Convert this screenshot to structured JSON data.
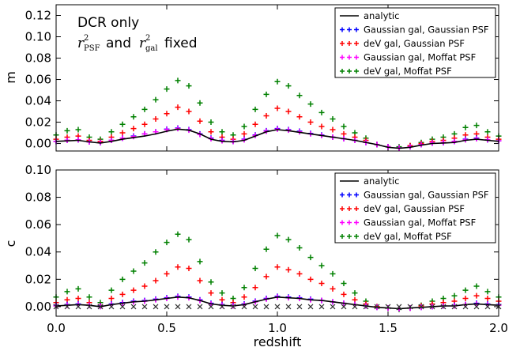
{
  "colors": {
    "analytic": "#000000",
    "gaussian_gaussian": "#0000ff",
    "dev_gaussian": "#ff0000",
    "gaussian_moffat": "#ff00ff",
    "dev_moffat": "#008000"
  },
  "chart_data": [
    {
      "type": "scatter",
      "id": "m",
      "ylabel": "m",
      "xlabel": "",
      "xlim": [
        0.0,
        2.0
      ],
      "ylim": [
        -0.007,
        0.13
      ],
      "yticks": [
        "0.00",
        "0.02",
        "0.04",
        "0.06",
        "0.08",
        "0.10",
        "0.12"
      ],
      "yticks_values": [
        0.0,
        0.02,
        0.04,
        0.06,
        0.08,
        0.1,
        0.12
      ],
      "xticks_values": [
        0.0,
        0.5,
        1.0,
        1.5,
        2.0
      ],
      "legend_position": "top-right",
      "legend": [
        "analytic",
        "Gaussian gal, Gaussian PSF",
        "deV gal, Gaussian PSF",
        "Gaussian gal, Moffat PSF",
        "deV gal, Moffat PSF"
      ],
      "annotation": {
        "line1": "DCR only",
        "and_fixed": "and",
        "fixed": "fixed",
        "r": "r",
        "sup": "2",
        "psf": "PSF",
        "gal": "gal"
      },
      "x": [
        0.0,
        0.05,
        0.1,
        0.15,
        0.2,
        0.25,
        0.3,
        0.35,
        0.4,
        0.45,
        0.5,
        0.55,
        0.6,
        0.65,
        0.7,
        0.75,
        0.8,
        0.85,
        0.9,
        0.95,
        1.0,
        1.05,
        1.1,
        1.15,
        1.2,
        1.25,
        1.3,
        1.35,
        1.4,
        1.45,
        1.5,
        1.55,
        1.6,
        1.65,
        1.7,
        1.75,
        1.8,
        1.85,
        1.9,
        1.95,
        2.0
      ],
      "series": [
        {
          "name": "analytic",
          "marker": "line",
          "color_key": "analytic",
          "values": [
            0.002,
            0.0025,
            0.003,
            0.0015,
            0.0005,
            0.002,
            0.004,
            0.0055,
            0.007,
            0.009,
            0.0115,
            0.0135,
            0.0125,
            0.009,
            0.004,
            0.002,
            0.0015,
            0.003,
            0.007,
            0.011,
            0.013,
            0.012,
            0.0105,
            0.009,
            0.0075,
            0.006,
            0.0045,
            0.003,
            0.001,
            -0.001,
            -0.0035,
            -0.0045,
            -0.0035,
            -0.0015,
            0.0,
            0.0005,
            0.001,
            0.003,
            0.004,
            0.003,
            0.002
          ]
        },
        {
          "name": "Gaussian gal, Gaussian PSF",
          "marker": "plus",
          "color_key": "gaussian_gaussian",
          "values": [
            0.002,
            0.003,
            0.0035,
            0.0015,
            0.001,
            0.003,
            0.005,
            0.007,
            0.009,
            0.011,
            0.0135,
            0.0145,
            0.013,
            0.009,
            0.005,
            0.003,
            0.002,
            0.004,
            0.008,
            0.012,
            0.014,
            0.013,
            0.0115,
            0.0095,
            0.008,
            0.006,
            0.0045,
            0.003,
            0.001,
            -0.001,
            -0.003,
            -0.004,
            -0.003,
            -0.001,
            0.0005,
            0.001,
            0.002,
            0.004,
            0.005,
            0.0035,
            0.0025
          ]
        },
        {
          "name": "deV gal, Gaussian PSF",
          "marker": "plus",
          "color_key": "dev_gaussian",
          "values": [
            0.004,
            0.006,
            0.007,
            0.003,
            0.002,
            0.006,
            0.01,
            0.014,
            0.018,
            0.023,
            0.028,
            0.034,
            0.03,
            0.021,
            0.011,
            0.006,
            0.004,
            0.009,
            0.018,
            0.026,
            0.033,
            0.03,
            0.025,
            0.02,
            0.016,
            0.013,
            0.009,
            0.006,
            0.003,
            -0.001,
            -0.003,
            -0.004,
            -0.002,
            0.0,
            0.002,
            0.003,
            0.005,
            0.008,
            0.009,
            0.006,
            0.004
          ]
        },
        {
          "name": "Gaussian gal, Moffat PSF",
          "marker": "plus",
          "color_key": "gaussian_moffat",
          "values": [
            0.002,
            0.003,
            0.0035,
            0.0015,
            0.001,
            0.003,
            0.005,
            0.0065,
            0.009,
            0.011,
            0.013,
            0.014,
            0.0125,
            0.0085,
            0.0045,
            0.0025,
            0.002,
            0.0035,
            0.0075,
            0.0115,
            0.0135,
            0.0125,
            0.011,
            0.009,
            0.0075,
            0.006,
            0.0045,
            0.003,
            0.001,
            -0.001,
            -0.003,
            -0.004,
            -0.003,
            -0.001,
            0.0005,
            0.001,
            0.002,
            0.0035,
            0.0045,
            0.0035,
            0.0025
          ]
        },
        {
          "name": "deV gal, Moffat PSF",
          "marker": "plus",
          "color_key": "dev_moffat",
          "values": [
            0.008,
            0.012,
            0.013,
            0.006,
            0.004,
            0.011,
            0.018,
            0.025,
            0.032,
            0.041,
            0.051,
            0.059,
            0.054,
            0.038,
            0.02,
            0.011,
            0.008,
            0.016,
            0.032,
            0.046,
            0.058,
            0.054,
            0.045,
            0.037,
            0.029,
            0.023,
            0.016,
            0.01,
            0.005,
            -0.001,
            -0.003,
            -0.003,
            -0.002,
            0.001,
            0.004,
            0.006,
            0.009,
            0.015,
            0.017,
            0.011,
            0.007
          ]
        }
      ]
    },
    {
      "type": "scatter",
      "id": "c",
      "ylabel": "c",
      "xlabel": "redshift",
      "xlim": [
        0.0,
        2.0
      ],
      "ylim": [
        -0.007,
        0.1
      ],
      "yticks": [
        "0.00",
        "0.02",
        "0.04",
        "0.06",
        "0.08",
        "0.10"
      ],
      "yticks_values": [
        0.0,
        0.02,
        0.04,
        0.06,
        0.08,
        0.1
      ],
      "xticks": [
        "0.0",
        "0.5",
        "1.0",
        "1.5",
        "2.0"
      ],
      "xticks_values": [
        0.0,
        0.5,
        1.0,
        1.5,
        2.0
      ],
      "legend_position": "top-right",
      "legend": [
        "analytic",
        "Gaussian gal, Gaussian PSF",
        "deV gal, Gaussian PSF",
        "Gaussian gal, Moffat PSF",
        "deV gal, Moffat PSF"
      ],
      "x": [
        0.0,
        0.05,
        0.1,
        0.15,
        0.2,
        0.25,
        0.3,
        0.35,
        0.4,
        0.45,
        0.5,
        0.55,
        0.6,
        0.65,
        0.7,
        0.75,
        0.8,
        0.85,
        0.9,
        0.95,
        1.0,
        1.05,
        1.1,
        1.15,
        1.2,
        1.25,
        1.3,
        1.35,
        1.4,
        1.45,
        1.5,
        1.55,
        1.6,
        1.65,
        1.7,
        1.75,
        1.8,
        1.85,
        1.9,
        1.95,
        2.0
      ],
      "series": [
        {
          "name": "analytic",
          "marker": "line",
          "color_key": "analytic",
          "values": [
            0.0005,
            0.001,
            0.0015,
            0.001,
            0.0,
            0.0015,
            0.0025,
            0.0035,
            0.004,
            0.005,
            0.006,
            0.007,
            0.0065,
            0.0045,
            0.002,
            0.001,
            0.0005,
            0.0015,
            0.0035,
            0.0055,
            0.007,
            0.0065,
            0.006,
            0.005,
            0.0045,
            0.0035,
            0.0025,
            0.0015,
            0.0005,
            -0.0005,
            -0.001,
            -0.0015,
            -0.001,
            -0.0005,
            0.0,
            0.0005,
            0.0005,
            0.0015,
            0.002,
            0.0015,
            0.001
          ]
        },
        {
          "name": "Gaussian gal, Gaussian PSF",
          "marker": "plus",
          "color_key": "gaussian_gaussian",
          "values": [
            0.001,
            0.0015,
            0.002,
            0.001,
            0.0005,
            0.002,
            0.003,
            0.004,
            0.0045,
            0.0055,
            0.0065,
            0.0075,
            0.007,
            0.005,
            0.0025,
            0.0015,
            0.001,
            0.002,
            0.004,
            0.006,
            0.0075,
            0.007,
            0.0065,
            0.0055,
            0.0045,
            0.0035,
            0.0025,
            0.0015,
            0.0005,
            -0.0005,
            -0.001,
            -0.0015,
            -0.001,
            -0.0005,
            0.0,
            0.0005,
            0.001,
            0.0015,
            0.0025,
            0.002,
            0.0015
          ]
        },
        {
          "name": "deV gal, Gaussian PSF",
          "marker": "plus",
          "color_key": "dev_gaussian",
          "values": [
            0.003,
            0.005,
            0.006,
            0.003,
            0.001,
            0.006,
            0.009,
            0.012,
            0.015,
            0.019,
            0.024,
            0.029,
            0.028,
            0.019,
            0.01,
            0.005,
            0.003,
            0.007,
            0.014,
            0.022,
            0.029,
            0.027,
            0.024,
            0.02,
            0.017,
            0.013,
            0.009,
            0.005,
            0.002,
            0.0,
            -0.001,
            -0.0015,
            -0.001,
            0.0005,
            0.002,
            0.003,
            0.004,
            0.006,
            0.008,
            0.006,
            0.004
          ]
        },
        {
          "name": "Gaussian gal, Moffat PSF",
          "marker": "plus",
          "color_key": "gaussian_moffat",
          "values": [
            0.0005,
            0.001,
            0.0015,
            0.001,
            0.0,
            0.0015,
            0.0025,
            0.0035,
            0.004,
            0.005,
            0.006,
            0.007,
            0.0065,
            0.0045,
            0.002,
            0.001,
            0.0005,
            0.0015,
            0.0035,
            0.0055,
            0.007,
            0.0065,
            0.006,
            0.005,
            0.0045,
            0.0035,
            0.0025,
            0.0015,
            0.0005,
            -0.0005,
            -0.001,
            -0.0015,
            -0.001,
            -0.0005,
            0.0,
            0.0005,
            0.0005,
            0.0015,
            0.002,
            0.0015,
            0.001
          ]
        },
        {
          "name": "deV gal, Moffat PSF",
          "marker": "plus",
          "color_key": "dev_moffat",
          "values": [
            0.007,
            0.011,
            0.013,
            0.007,
            0.003,
            0.012,
            0.02,
            0.026,
            0.032,
            0.04,
            0.047,
            0.053,
            0.049,
            0.033,
            0.018,
            0.01,
            0.006,
            0.014,
            0.028,
            0.042,
            0.052,
            0.049,
            0.043,
            0.036,
            0.03,
            0.024,
            0.017,
            0.01,
            0.004,
            0.0,
            -0.001,
            -0.002,
            -0.001,
            0.001,
            0.004,
            0.006,
            0.008,
            0.012,
            0.015,
            0.011,
            0.007
          ]
        }
      ]
    }
  ]
}
